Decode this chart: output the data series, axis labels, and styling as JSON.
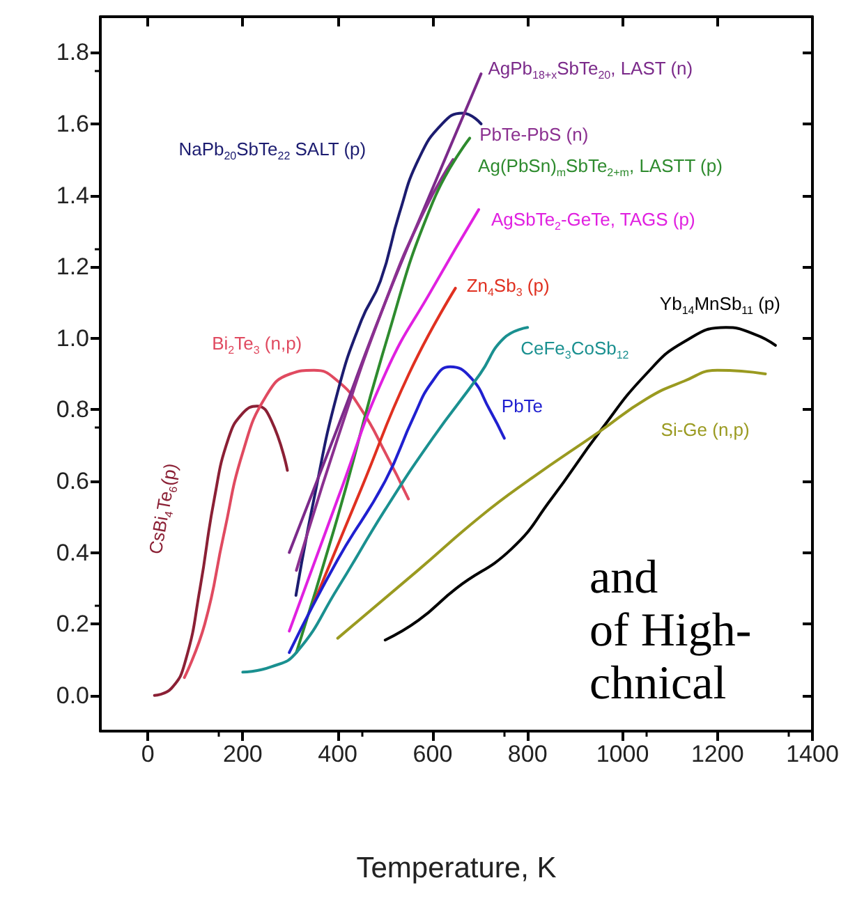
{
  "chart_data": {
    "type": "line",
    "xlabel": "Temperature, K",
    "xlim": [
      -100,
      1400
    ],
    "xticks": [
      0,
      200,
      400,
      600,
      800,
      1000,
      1200,
      1400
    ],
    "ylim": [
      -0.1,
      1.9
    ],
    "yticks": [
      {
        "value": 0,
        "label": "0.0"
      },
      {
        "value": 0.2,
        "label": "0.2"
      },
      {
        "value": 0.4,
        "label": "0.4"
      },
      {
        "value": 0.6,
        "label": "0.6"
      },
      {
        "value": 0.8,
        "label": "0.8"
      },
      {
        "value": 1,
        "label": "1.0"
      },
      {
        "value": 1.2,
        "label": "1.2"
      },
      {
        "value": 1.4,
        "label": "1.4"
      },
      {
        "value": 1.6,
        "label": "1.6"
      },
      {
        "value": 1.8,
        "label": "1.8"
      }
    ],
    "grid": false,
    "legend": false,
    "marker": "none",
    "line_style": "solid",
    "series": [
      {
        "name": "CsBi$_{4}$Te$_{6}$(p)",
        "color": "#8b2035",
        "x": [
          14,
          50,
          80,
          110,
          140,
          170,
          200,
          230,
          260,
          294
        ],
        "values": [
          0.0,
          0.02,
          0.1,
          0.3,
          0.55,
          0.72,
          0.79,
          0.81,
          0.77,
          0.63
        ]
      },
      {
        "name": "Bi$_{2}$Te$_{3}$ (n,p)",
        "color": "#e04a60",
        "x": [
          77,
          120,
          160,
          200,
          250,
          300,
          350,
          400,
          450,
          500,
          549
        ],
        "values": [
          0.05,
          0.2,
          0.45,
          0.68,
          0.84,
          0.9,
          0.91,
          0.88,
          0.8,
          0.68,
          0.55
        ]
      },
      {
        "name": "NaPb$_{20}$SbTe$_{22}$ SALT (p)",
        "color": "#1c1c70",
        "x": [
          312,
          350,
          400,
          450,
          490,
          530,
          570,
          620,
          663,
          702
        ],
        "values": [
          0.28,
          0.55,
          0.85,
          1.05,
          1.16,
          1.35,
          1.5,
          1.6,
          1.63,
          1.6
        ]
      },
      {
        "name": "AgPb$_{18+x}$SbTe$_{20}$, LAST (n)",
        "color": "#7b2a8a",
        "x": [
          298,
          400,
          500,
          600,
          702
        ],
        "values": [
          0.4,
          0.75,
          1.1,
          1.42,
          1.74
        ]
      },
      {
        "name": "PbTe-PbS (n)",
        "color": "#8b3090",
        "x": [
          313,
          400,
          500,
          580,
          643
        ],
        "values": [
          0.35,
          0.72,
          1.1,
          1.35,
          1.5
        ]
      },
      {
        "name": "Ag(PbSn)$_{m}$SbTe$_{2+m}$, LASTT (p)",
        "color": "#2e8b2e",
        "x": [
          313,
          400,
          500,
          600,
          678
        ],
        "values": [
          0.12,
          0.5,
          0.98,
          1.38,
          1.56
        ]
      },
      {
        "name": "AgSbTe$_{2}$-GeTe, TAGS (p)",
        "color": "#e020e0",
        "x": [
          298,
          400,
          500,
          600,
          697
        ],
        "values": [
          0.18,
          0.55,
          0.9,
          1.14,
          1.36
        ]
      },
      {
        "name": "Zn$_{4}$Sb$_{3}$ (p)",
        "color": "#e03020",
        "x": [
          350,
          450,
          550,
          648
        ],
        "values": [
          0.26,
          0.58,
          0.9,
          1.14
        ]
      },
      {
        "name": "PbTe",
        "color": "#2020d0",
        "x": [
          298,
          400,
          500,
          560,
          600,
          637,
          680,
          720,
          751
        ],
        "values": [
          0.12,
          0.38,
          0.6,
          0.78,
          0.88,
          0.92,
          0.89,
          0.8,
          0.72
        ]
      },
      {
        "name": "CeFe$_{3}$CoSb$_{12}$",
        "color": "#1a9090",
        "x": [
          200,
          260,
          313,
          400,
          500,
          600,
          700,
          750,
          800
        ],
        "values": [
          0.065,
          0.08,
          0.12,
          0.3,
          0.52,
          0.72,
          0.9,
          1.0,
          1.03
        ]
      },
      {
        "name": "Yb$_{14}$MnSb$_{11}$ (p)",
        "color": "#000000",
        "x": [
          500,
          570,
          650,
          766,
          850,
          953,
          1050,
          1130,
          1218,
          1280,
          1322
        ],
        "values": [
          0.155,
          0.21,
          0.3,
          0.41,
          0.55,
          0.74,
          0.9,
          0.99,
          1.03,
          1.01,
          0.98
        ]
      },
      {
        "name": "Si-Ge (n,p)",
        "color": "#9a9a20",
        "x": [
          400,
          569,
          700,
          800,
          953,
          1050,
          1130,
          1200,
          1301
        ],
        "values": [
          0.16,
          0.35,
          0.5,
          0.6,
          0.74,
          0.83,
          0.88,
          0.91,
          0.9
        ]
      }
    ],
    "annotations": [
      "and",
      "of High-",
      "chnical"
    ]
  }
}
